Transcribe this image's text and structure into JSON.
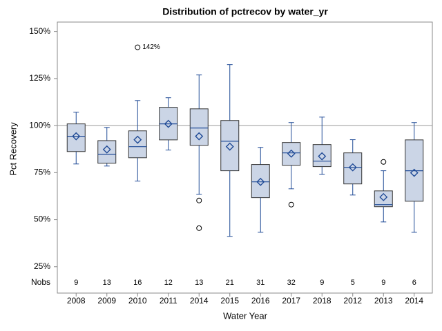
{
  "chart_data": {
    "type": "box",
    "title": "Distribution of pctrecov by water_yr",
    "x_label": "Water Year",
    "y_label": "Pct Recovery",
    "categories": [
      "2008",
      "2009",
      "2010",
      "2011",
      "2014",
      "2015",
      "2016",
      "2017",
      "2018",
      "2012",
      "2013",
      "2014"
    ],
    "boxes": [
      {
        "min": 79.6,
        "q1": 86.2,
        "median": 94.3,
        "q3": 100.9,
        "max": 107.1,
        "mean": 94.3,
        "outliers": []
      },
      {
        "min": 78.5,
        "q1": 80,
        "median": 84.8,
        "q3": 92,
        "max": 99,
        "mean": 87.3,
        "outliers": []
      },
      {
        "min": 70.5,
        "q1": 82.9,
        "median": 88.8,
        "q3": 97.2,
        "max": 113.3,
        "mean": 92.5,
        "outliers": [
          141.6
        ],
        "outlier_labels": [
          "142%"
        ]
      },
      {
        "min": 87,
        "q1": 92.4,
        "median": 100.9,
        "q3": 109.7,
        "max": 114.8,
        "mean": 100.9,
        "outliers": []
      },
      {
        "min": 63.5,
        "q1": 89.5,
        "median": 98.7,
        "q3": 108.9,
        "max": 126.9,
        "mean": 94.3,
        "outliers": [
          60.2,
          45.5
        ]
      },
      {
        "min": 41.1,
        "q1": 76,
        "median": 91.7,
        "q3": 102.7,
        "max": 132.4,
        "mean": 88.8,
        "outliers": []
      },
      {
        "min": 43.3,
        "q1": 61.7,
        "median": 70.1,
        "q3": 79.3,
        "max": 88.4,
        "mean": 70.1,
        "outliers": []
      },
      {
        "min": 66.4,
        "q1": 78.9,
        "median": 85.5,
        "q3": 91,
        "max": 101.6,
        "mean": 85.1,
        "outliers": [
          58
        ]
      },
      {
        "min": 74.1,
        "q1": 78.2,
        "median": 81.1,
        "q3": 89.9,
        "max": 104.5,
        "mean": 83.7,
        "outliers": []
      },
      {
        "min": 63.1,
        "q1": 69,
        "median": 77.8,
        "q3": 85.5,
        "max": 92.5,
        "mean": 77.8,
        "outliers": []
      },
      {
        "min": 48.8,
        "q1": 56.9,
        "median": 58,
        "q3": 65.3,
        "max": 76,
        "mean": 62,
        "outliers": [
          80.7
        ]
      },
      {
        "min": 43.3,
        "q1": 59.8,
        "median": 76,
        "q3": 92.4,
        "max": 101.6,
        "mean": 74.9,
        "outliers": []
      }
    ],
    "nobs_label": "Nobs",
    "nobs": [
      9,
      13,
      16,
      12,
      13,
      21,
      31,
      32,
      9,
      5,
      9,
      6
    ],
    "ylim": [
      11,
      155
    ],
    "yticks": [
      {
        "value": 25,
        "label": "25%"
      },
      {
        "value": 50,
        "label": "50%"
      },
      {
        "value": 75,
        "label": "75%"
      },
      {
        "value": 100,
        "label": "100%"
      },
      {
        "value": 125,
        "label": "125%"
      },
      {
        "value": 150,
        "label": "150%"
      }
    ],
    "refline": 100,
    "box_fill": "#cbd5e6",
    "line_color": "#1f4a96"
  }
}
